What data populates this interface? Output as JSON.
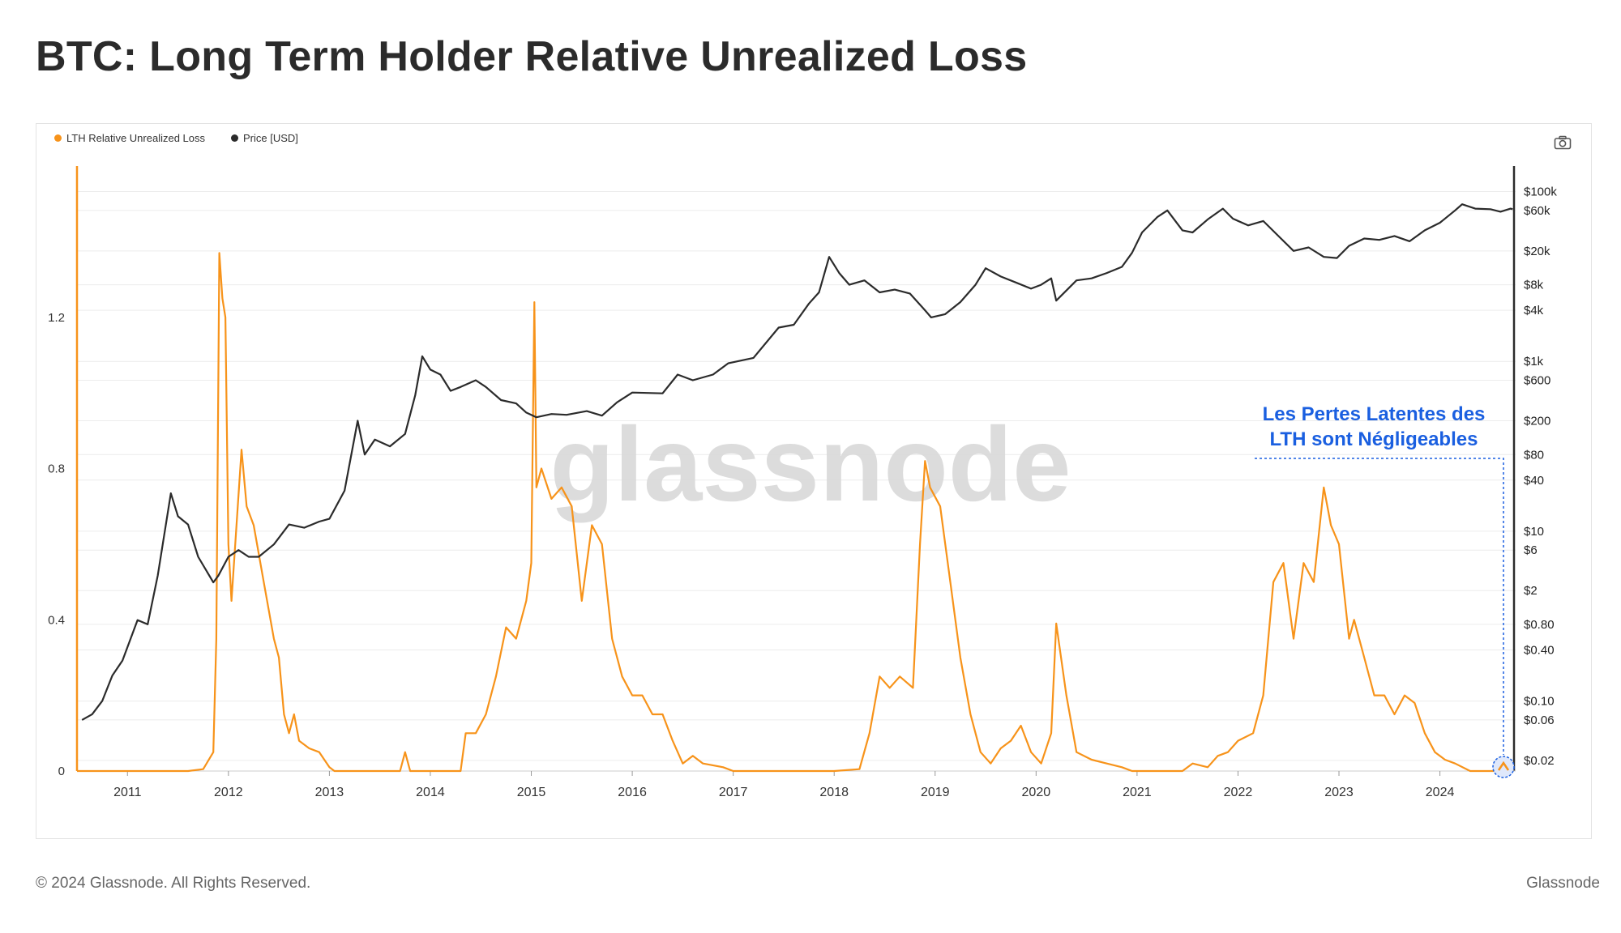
{
  "title": "BTC: Long Term Holder Relative Unrealized Loss",
  "footer": {
    "copyright": "© 2024 Glassnode. All Rights Reserved.",
    "brand": "Glassnode"
  },
  "watermark": "glassnode",
  "annotation": {
    "line1": "Les Pertes Latentes des",
    "line2": "LTH sont Négligeables"
  },
  "colors": {
    "loss": "#f7931a",
    "price": "#2b2b2b",
    "annotation": "#1a5fe0"
  },
  "chart_data": {
    "type": "line",
    "title": "BTC: Long Term Holder Relative Unrealized Loss",
    "legend": [
      {
        "name": "LTH Relative Unrealized Loss",
        "color": "#f7931a"
      },
      {
        "name": "Price [USD]",
        "color": "#2b2b2b"
      }
    ],
    "x_ticks": [
      "2011",
      "2012",
      "2013",
      "2014",
      "2015",
      "2016",
      "2017",
      "2018",
      "2019",
      "2020",
      "2021",
      "2022",
      "2023",
      "2024"
    ],
    "x_range": [
      2010.5,
      2024.75
    ],
    "y_left": {
      "ticks": [
        "0",
        "0.4",
        "0.8",
        "1.2"
      ],
      "range": [
        0,
        1.6
      ]
    },
    "y_right": {
      "scale": "log",
      "range": [
        0.015,
        200000
      ],
      "ticks": [
        {
          "v": 100000,
          "label": "$100k"
        },
        {
          "v": 60000,
          "label": "$60k"
        },
        {
          "v": 20000,
          "label": "$20k"
        },
        {
          "v": 8000,
          "label": "$8k"
        },
        {
          "v": 4000,
          "label": "$4k"
        },
        {
          "v": 1000,
          "label": "$1k"
        },
        {
          "v": 600,
          "label": "$600"
        },
        {
          "v": 200,
          "label": "$200"
        },
        {
          "v": 80,
          "label": "$80"
        },
        {
          "v": 40,
          "label": "$40"
        },
        {
          "v": 10,
          "label": "$10"
        },
        {
          "v": 6,
          "label": "$6"
        },
        {
          "v": 2,
          "label": "$2"
        },
        {
          "v": 0.8,
          "label": "$0.80"
        },
        {
          "v": 0.4,
          "label": "$0.40"
        },
        {
          "v": 0.1,
          "label": "$0.10"
        },
        {
          "v": 0.06,
          "label": "$0.06"
        },
        {
          "v": 0.02,
          "label": "$0.02"
        }
      ]
    },
    "series": [
      {
        "name": "LTH Relative Unrealized Loss",
        "axis": "left",
        "points": [
          [
            2010.5,
            0
          ],
          [
            2011.6,
            0
          ],
          [
            2011.75,
            0.005
          ],
          [
            2011.85,
            0.05
          ],
          [
            2011.88,
            0.35
          ],
          [
            2011.91,
            1.37
          ],
          [
            2011.94,
            1.25
          ],
          [
            2011.97,
            1.2
          ],
          [
            2012.0,
            0.6
          ],
          [
            2012.03,
            0.45
          ],
          [
            2012.08,
            0.65
          ],
          [
            2012.13,
            0.85
          ],
          [
            2012.18,
            0.7
          ],
          [
            2012.25,
            0.65
          ],
          [
            2012.35,
            0.5
          ],
          [
            2012.45,
            0.35
          ],
          [
            2012.5,
            0.3
          ],
          [
            2012.55,
            0.15
          ],
          [
            2012.6,
            0.1
          ],
          [
            2012.65,
            0.15
          ],
          [
            2012.7,
            0.08
          ],
          [
            2012.8,
            0.06
          ],
          [
            2012.9,
            0.05
          ],
          [
            2013.0,
            0.01
          ],
          [
            2013.05,
            0
          ],
          [
            2013.7,
            0
          ],
          [
            2013.75,
            0.05
          ],
          [
            2013.8,
            0
          ],
          [
            2014.3,
            0
          ],
          [
            2014.35,
            0.1
          ],
          [
            2014.45,
            0.1
          ],
          [
            2014.55,
            0.15
          ],
          [
            2014.65,
            0.25
          ],
          [
            2014.75,
            0.38
          ],
          [
            2014.85,
            0.35
          ],
          [
            2014.95,
            0.45
          ],
          [
            2015.0,
            0.55
          ],
          [
            2015.03,
            1.24
          ],
          [
            2015.05,
            0.75
          ],
          [
            2015.1,
            0.8
          ],
          [
            2015.2,
            0.72
          ],
          [
            2015.3,
            0.75
          ],
          [
            2015.4,
            0.7
          ],
          [
            2015.5,
            0.45
          ],
          [
            2015.6,
            0.65
          ],
          [
            2015.7,
            0.6
          ],
          [
            2015.8,
            0.35
          ],
          [
            2015.9,
            0.25
          ],
          [
            2016.0,
            0.2
          ],
          [
            2016.1,
            0.2
          ],
          [
            2016.2,
            0.15
          ],
          [
            2016.3,
            0.15
          ],
          [
            2016.4,
            0.08
          ],
          [
            2016.5,
            0.02
          ],
          [
            2016.6,
            0.04
          ],
          [
            2016.7,
            0.02
          ],
          [
            2016.9,
            0.01
          ],
          [
            2017.0,
            0
          ],
          [
            2018.0,
            0
          ],
          [
            2018.25,
            0.005
          ],
          [
            2018.35,
            0.1
          ],
          [
            2018.45,
            0.25
          ],
          [
            2018.55,
            0.22
          ],
          [
            2018.65,
            0.25
          ],
          [
            2018.78,
            0.22
          ],
          [
            2018.85,
            0.6
          ],
          [
            2018.9,
            0.82
          ],
          [
            2018.95,
            0.75
          ],
          [
            2019.05,
            0.7
          ],
          [
            2019.15,
            0.5
          ],
          [
            2019.25,
            0.3
          ],
          [
            2019.35,
            0.15
          ],
          [
            2019.45,
            0.05
          ],
          [
            2019.55,
            0.02
          ],
          [
            2019.65,
            0.06
          ],
          [
            2019.75,
            0.08
          ],
          [
            2019.85,
            0.12
          ],
          [
            2019.95,
            0.05
          ],
          [
            2020.05,
            0.02
          ],
          [
            2020.15,
            0.1
          ],
          [
            2020.2,
            0.39
          ],
          [
            2020.3,
            0.2
          ],
          [
            2020.4,
            0.05
          ],
          [
            2020.55,
            0.03
          ],
          [
            2020.7,
            0.02
          ],
          [
            2020.85,
            0.01
          ],
          [
            2020.95,
            0
          ],
          [
            2021.45,
            0
          ],
          [
            2021.55,
            0.02
          ],
          [
            2021.7,
            0.01
          ],
          [
            2021.8,
            0.04
          ],
          [
            2021.9,
            0.05
          ],
          [
            2022.0,
            0.08
          ],
          [
            2022.15,
            0.1
          ],
          [
            2022.25,
            0.2
          ],
          [
            2022.35,
            0.5
          ],
          [
            2022.45,
            0.55
          ],
          [
            2022.55,
            0.35
          ],
          [
            2022.65,
            0.55
          ],
          [
            2022.75,
            0.5
          ],
          [
            2022.85,
            0.75
          ],
          [
            2022.92,
            0.65
          ],
          [
            2023.0,
            0.6
          ],
          [
            2023.1,
            0.35
          ],
          [
            2023.15,
            0.4
          ],
          [
            2023.25,
            0.3
          ],
          [
            2023.35,
            0.2
          ],
          [
            2023.45,
            0.2
          ],
          [
            2023.55,
            0.15
          ],
          [
            2023.65,
            0.2
          ],
          [
            2023.75,
            0.18
          ],
          [
            2023.85,
            0.1
          ],
          [
            2023.95,
            0.05
          ],
          [
            2024.05,
            0.03
          ],
          [
            2024.15,
            0.02
          ],
          [
            2024.3,
            0
          ],
          [
            2024.72,
            0
          ]
        ]
      },
      {
        "name": "Price [USD]",
        "axis": "right",
        "points": [
          [
            2010.55,
            0.06
          ],
          [
            2010.65,
            0.07
          ],
          [
            2010.75,
            0.1
          ],
          [
            2010.85,
            0.2
          ],
          [
            2010.95,
            0.3
          ],
          [
            2011.1,
            0.9
          ],
          [
            2011.2,
            0.8
          ],
          [
            2011.3,
            3
          ],
          [
            2011.43,
            28
          ],
          [
            2011.5,
            15
          ],
          [
            2011.6,
            12
          ],
          [
            2011.7,
            5
          ],
          [
            2011.85,
            2.5
          ],
          [
            2011.9,
            3
          ],
          [
            2012.0,
            5
          ],
          [
            2012.1,
            6
          ],
          [
            2012.2,
            5
          ],
          [
            2012.3,
            5
          ],
          [
            2012.45,
            7
          ],
          [
            2012.6,
            12
          ],
          [
            2012.75,
            11
          ],
          [
            2012.9,
            13
          ],
          [
            2013.0,
            14
          ],
          [
            2013.15,
            30
          ],
          [
            2013.28,
            200
          ],
          [
            2013.35,
            80
          ],
          [
            2013.45,
            120
          ],
          [
            2013.6,
            100
          ],
          [
            2013.75,
            140
          ],
          [
            2013.85,
            400
          ],
          [
            2013.92,
            1150
          ],
          [
            2014.0,
            800
          ],
          [
            2014.1,
            700
          ],
          [
            2014.2,
            450
          ],
          [
            2014.3,
            500
          ],
          [
            2014.45,
            600
          ],
          [
            2014.55,
            500
          ],
          [
            2014.7,
            350
          ],
          [
            2014.85,
            320
          ],
          [
            2014.95,
            250
          ],
          [
            2015.05,
            220
          ],
          [
            2015.2,
            240
          ],
          [
            2015.35,
            235
          ],
          [
            2015.55,
            260
          ],
          [
            2015.7,
            230
          ],
          [
            2015.85,
            330
          ],
          [
            2016.0,
            430
          ],
          [
            2016.3,
            420
          ],
          [
            2016.45,
            700
          ],
          [
            2016.6,
            600
          ],
          [
            2016.8,
            700
          ],
          [
            2016.95,
            950
          ],
          [
            2017.2,
            1100
          ],
          [
            2017.45,
            2500
          ],
          [
            2017.6,
            2700
          ],
          [
            2017.75,
            4800
          ],
          [
            2017.85,
            6500
          ],
          [
            2017.95,
            17000
          ],
          [
            2018.05,
            11000
          ],
          [
            2018.15,
            8000
          ],
          [
            2018.3,
            9000
          ],
          [
            2018.45,
            6500
          ],
          [
            2018.6,
            7000
          ],
          [
            2018.75,
            6300
          ],
          [
            2018.9,
            4000
          ],
          [
            2018.96,
            3300
          ],
          [
            2019.1,
            3600
          ],
          [
            2019.25,
            5000
          ],
          [
            2019.4,
            8000
          ],
          [
            2019.5,
            12500
          ],
          [
            2019.65,
            10000
          ],
          [
            2019.8,
            8500
          ],
          [
            2019.95,
            7200
          ],
          [
            2020.05,
            8000
          ],
          [
            2020.15,
            9500
          ],
          [
            2020.2,
            5200
          ],
          [
            2020.4,
            9000
          ],
          [
            2020.55,
            9500
          ],
          [
            2020.7,
            11000
          ],
          [
            2020.85,
            13000
          ],
          [
            2020.95,
            19000
          ],
          [
            2021.05,
            33000
          ],
          [
            2021.2,
            50000
          ],
          [
            2021.3,
            60000
          ],
          [
            2021.45,
            35000
          ],
          [
            2021.55,
            33000
          ],
          [
            2021.7,
            47000
          ],
          [
            2021.85,
            63000
          ],
          [
            2021.95,
            48000
          ],
          [
            2022.1,
            40000
          ],
          [
            2022.25,
            45000
          ],
          [
            2022.4,
            30000
          ],
          [
            2022.55,
            20000
          ],
          [
            2022.7,
            22000
          ],
          [
            2022.85,
            17000
          ],
          [
            2022.98,
            16500
          ],
          [
            2023.1,
            23000
          ],
          [
            2023.25,
            28000
          ],
          [
            2023.4,
            27000
          ],
          [
            2023.55,
            30000
          ],
          [
            2023.7,
            26000
          ],
          [
            2023.85,
            35000
          ],
          [
            2024.0,
            43000
          ],
          [
            2024.15,
            60000
          ],
          [
            2024.22,
            71000
          ],
          [
            2024.35,
            63000
          ],
          [
            2024.5,
            62000
          ],
          [
            2024.6,
            58000
          ],
          [
            2024.7,
            63000
          ],
          [
            2024.72,
            62000
          ]
        ]
      }
    ]
  }
}
